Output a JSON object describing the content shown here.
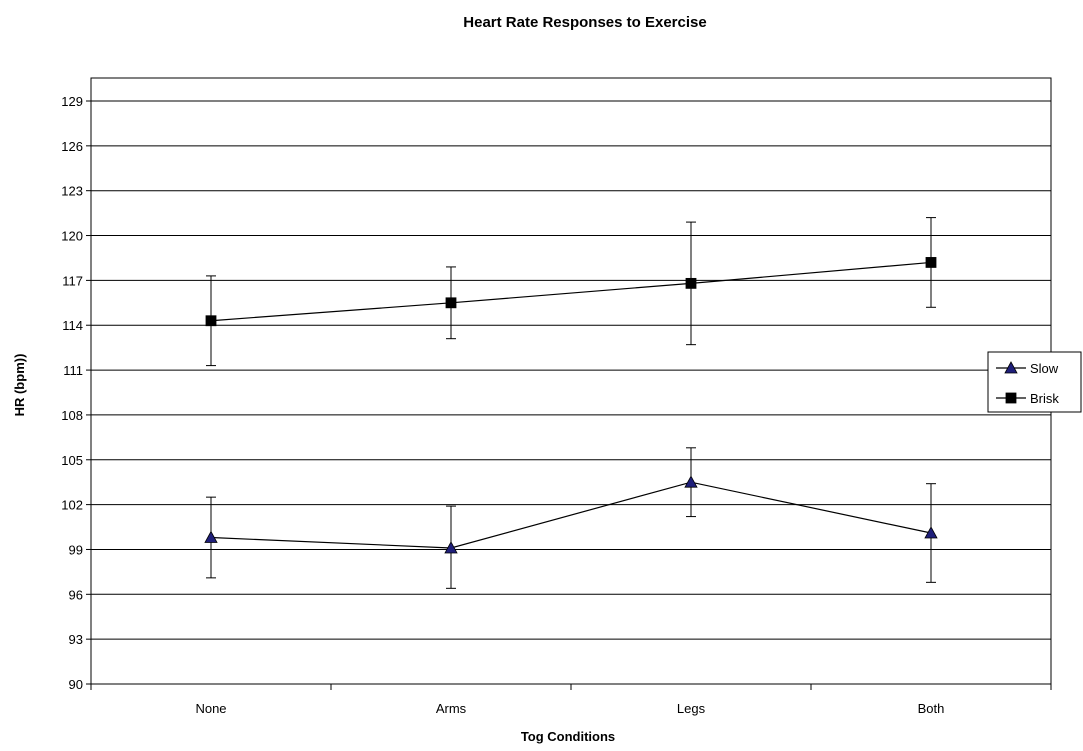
{
  "chart_data": {
    "type": "line",
    "title": "Heart Rate Responses to Exercise",
    "xlabel": "Tog Conditions",
    "ylabel": "HR (bpm))",
    "categories": [
      "None",
      "Arms",
      "Legs",
      "Both"
    ],
    "ylim": [
      90,
      129
    ],
    "yticks": [
      90,
      93,
      96,
      99,
      102,
      105,
      108,
      111,
      114,
      117,
      120,
      123,
      126,
      129
    ],
    "grid": "horizontal",
    "legend_position": "right",
    "series": [
      {
        "name": "Slow",
        "marker": "triangle",
        "marker_color": "#1f1f7a",
        "values": [
          99.8,
          99.1,
          103.5,
          100.1
        ],
        "error_low": [
          97.1,
          96.4,
          101.2,
          96.8
        ],
        "error_high": [
          102.5,
          101.9,
          105.8,
          103.4
        ]
      },
      {
        "name": "Brisk",
        "marker": "square",
        "marker_color": "#000000",
        "values": [
          114.3,
          115.5,
          116.8,
          118.2
        ],
        "error_low": [
          111.3,
          113.1,
          112.7,
          115.2
        ],
        "error_high": [
          117.3,
          117.9,
          120.9,
          121.2
        ]
      }
    ]
  }
}
